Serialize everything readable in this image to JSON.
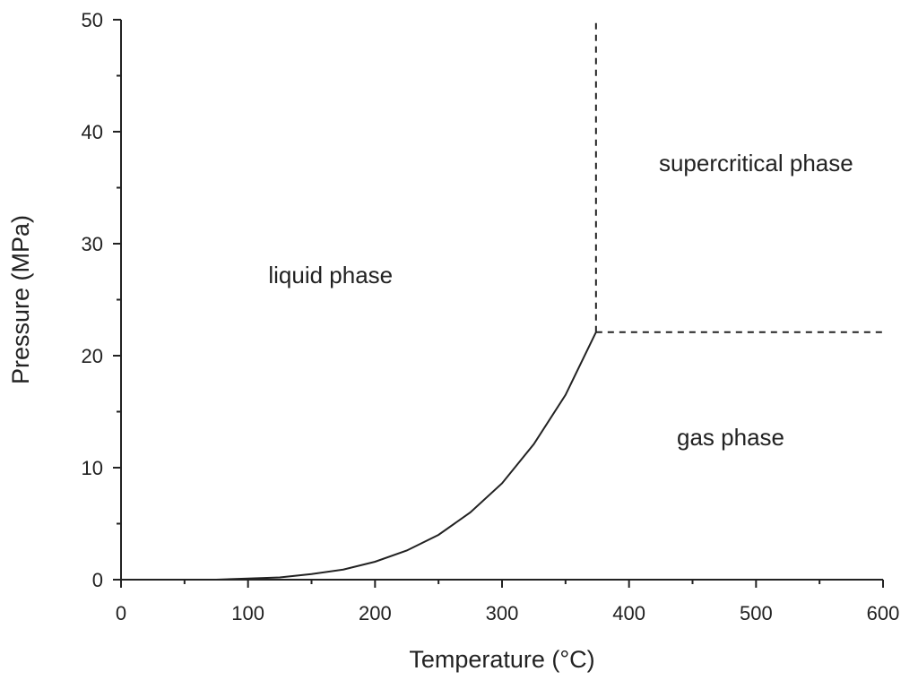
{
  "chart_data": {
    "type": "line",
    "title": "",
    "xlabel": "Temperature (°C)",
    "ylabel": "Pressure (MPa)",
    "xlim": [
      0,
      600
    ],
    "ylim": [
      0,
      50
    ],
    "x_ticks": [
      0,
      100,
      200,
      300,
      400,
      500,
      600
    ],
    "y_ticks": [
      0,
      10,
      20,
      30,
      40,
      50
    ],
    "x_tick_labels": [
      "0",
      "100",
      "200",
      "300",
      "400",
      "500",
      "600"
    ],
    "y_tick_labels": [
      "0",
      "10",
      "20",
      "30",
      "40",
      "50"
    ],
    "grid": false,
    "legend": "none",
    "colors": {
      "axis": "#222222",
      "line": "#222222"
    },
    "series": [
      {
        "style": "solid",
        "x": [
          0,
          25,
          50,
          75,
          100,
          125,
          150,
          175,
          200,
          225,
          250,
          275,
          300,
          325,
          350,
          374
        ],
        "y": [
          0.0,
          0.0,
          0.0,
          0.0,
          0.1,
          0.2,
          0.5,
          0.9,
          1.6,
          2.6,
          4.0,
          6.0,
          8.6,
          12.1,
          16.5,
          22.1
        ]
      },
      {
        "style": "dashed",
        "x": [
          374,
          374
        ],
        "y": [
          22.1,
          50
        ]
      },
      {
        "style": "dashed",
        "x": [
          374,
          600
        ],
        "y": [
          22.1,
          22.1
        ]
      }
    ],
    "annotations": [
      {
        "text": "liquid phase",
        "x": 165,
        "y": 26.5
      },
      {
        "text": "supercritical phase",
        "x": 500,
        "y": 36.5
      },
      {
        "text": "gas phase",
        "x": 480,
        "y": 12
      }
    ]
  }
}
